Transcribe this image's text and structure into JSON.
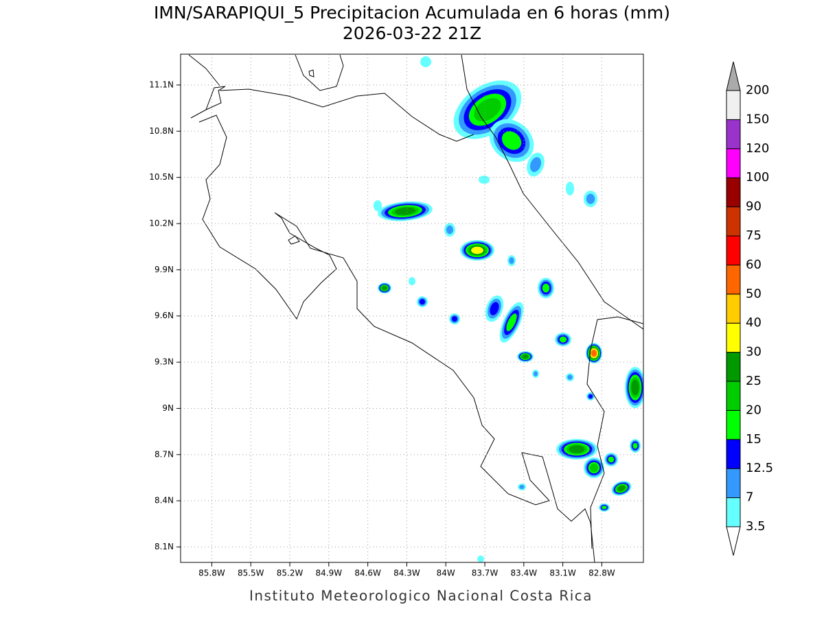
{
  "title": "IMN/SARAPIQUI_5 Precipitacion Acumulada en 6 horas (mm)",
  "subtitle": "2026-03-22 21Z",
  "footer": "Instituto Meteorologico Nacional Costa Rica",
  "map": {
    "xlim": [
      -86.04,
      -82.48
    ],
    "ylim": [
      8.0,
      11.3
    ],
    "grid": true,
    "xticks": [
      {
        "value": -85.8,
        "label": "85.8W"
      },
      {
        "value": -85.5,
        "label": "85.5W"
      },
      {
        "value": -85.2,
        "label": "85.2W"
      },
      {
        "value": -84.9,
        "label": "84.9W"
      },
      {
        "value": -84.6,
        "label": "84.6W"
      },
      {
        "value": -84.3,
        "label": "84.3W"
      },
      {
        "value": -84,
        "label": "84W"
      },
      {
        "value": -83.7,
        "label": "83.7W"
      },
      {
        "value": -83.4,
        "label": "83.4W"
      },
      {
        "value": -83.1,
        "label": "83.1W"
      },
      {
        "value": -82.8,
        "label": "82.8W"
      }
    ],
    "yticks": [
      {
        "value": 8.1,
        "label": "8.1N"
      },
      {
        "value": 8.4,
        "label": "8.4N"
      },
      {
        "value": 8.7,
        "label": "8.7N"
      },
      {
        "value": 9,
        "label": "9N"
      },
      {
        "value": 9.3,
        "label": "9.3N"
      },
      {
        "value": 9.6,
        "label": "9.6N"
      },
      {
        "value": 9.9,
        "label": "9.9N"
      },
      {
        "value": 10.2,
        "label": "10.2N"
      },
      {
        "value": 10.5,
        "label": "10.5N"
      },
      {
        "value": 10.8,
        "label": "10.8N"
      },
      {
        "value": 11.1,
        "label": "11.1N"
      }
    ]
  },
  "colorbar": {
    "levels": [
      3.5,
      7,
      12.5,
      15,
      20,
      25,
      30,
      40,
      50,
      60,
      75,
      90,
      100,
      120,
      150,
      200
    ],
    "colors": [
      "#66ffff",
      "#3399ff",
      "#0000ff",
      "#00ff00",
      "#00cc00",
      "#009900",
      "#ffff00",
      "#ffcc00",
      "#ff6600",
      "#ff0000",
      "#cc3300",
      "#990000",
      "#ff00ff",
      "#9933cc",
      "#f0f0f0"
    ],
    "under_color": "#ffffff",
    "over_color": "#aaaaaa"
  }
}
